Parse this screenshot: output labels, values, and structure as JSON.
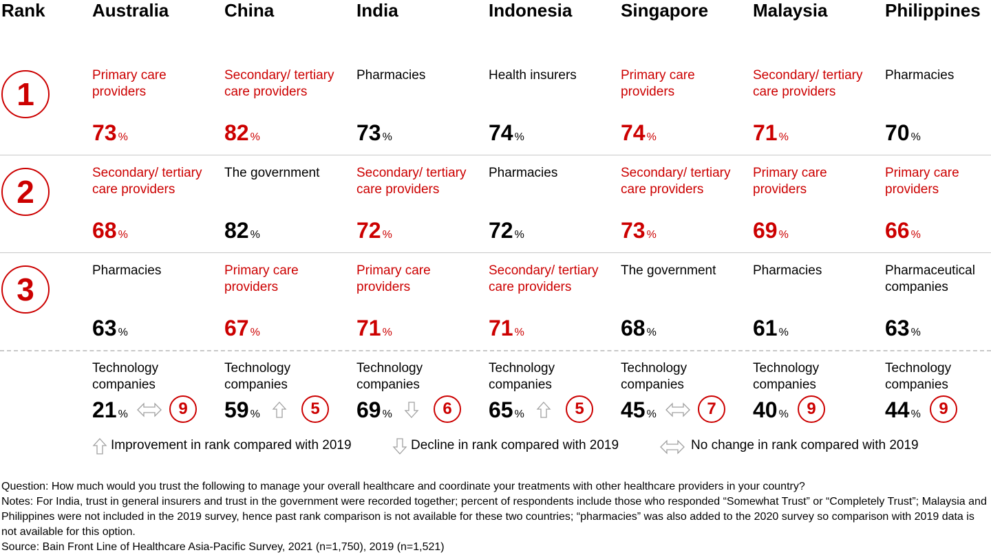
{
  "chart_data": {
    "type": "table",
    "rank_header": "Rank",
    "countries": [
      "Australia",
      "China",
      "India",
      "Indonesia",
      "Singapore",
      "Malaysia",
      "Philippines"
    ],
    "ranks": [
      {
        "rank": "1",
        "cells": [
          {
            "label": "Primary care providers",
            "value": 73,
            "highlight": true
          },
          {
            "label": "Secondary/ tertiary care providers",
            "value": 82,
            "highlight": true
          },
          {
            "label": "Pharmacies",
            "value": 73,
            "highlight": false
          },
          {
            "label": "Health insurers",
            "value": 74,
            "highlight": false
          },
          {
            "label": "Primary care providers",
            "value": 74,
            "highlight": true
          },
          {
            "label": "Secondary/ tertiary care providers",
            "value": 71,
            "highlight": true
          },
          {
            "label": "Pharmacies",
            "value": 70,
            "highlight": false
          }
        ]
      },
      {
        "rank": "2",
        "cells": [
          {
            "label": "Secondary/ tertiary care providers",
            "value": 68,
            "highlight": true
          },
          {
            "label": "The government",
            "value": 82,
            "highlight": false
          },
          {
            "label": "Secondary/ tertiary care providers",
            "value": 72,
            "highlight": true
          },
          {
            "label": "Pharmacies",
            "value": 72,
            "highlight": false
          },
          {
            "label": "Secondary/ tertiary care providers",
            "value": 73,
            "highlight": true
          },
          {
            "label": "Primary care providers",
            "value": 69,
            "highlight": true
          },
          {
            "label": "Primary care providers",
            "value": 66,
            "highlight": true
          }
        ]
      },
      {
        "rank": "3",
        "cells": [
          {
            "label": "Pharmacies",
            "value": 63,
            "highlight": false
          },
          {
            "label": "Primary care providers",
            "value": 67,
            "highlight": true
          },
          {
            "label": "Primary care providers",
            "value": 71,
            "highlight": true
          },
          {
            "label": "Secondary/ tertiary care providers",
            "value": 71,
            "highlight": true
          },
          {
            "label": "The government",
            "value": 68,
            "highlight": false
          },
          {
            "label": "Pharmacies",
            "value": 61,
            "highlight": false
          },
          {
            "label": "Pharmaceutical companies",
            "value": 63,
            "highlight": false
          }
        ]
      }
    ],
    "technology_row": {
      "label": "Technology companies",
      "cells": [
        {
          "value": 21,
          "trend": "nochange",
          "rank": "9"
        },
        {
          "value": 59,
          "trend": "up",
          "rank": "5"
        },
        {
          "value": 69,
          "trend": "down",
          "rank": "6"
        },
        {
          "value": 65,
          "trend": "up",
          "rank": "5"
        },
        {
          "value": 45,
          "trend": "nochange",
          "rank": "7"
        },
        {
          "value": 40,
          "trend": "none",
          "rank": "9"
        },
        {
          "value": 44,
          "trend": "none",
          "rank": "9"
        }
      ]
    },
    "percent_symbol": "%",
    "legend": [
      {
        "icon": "up",
        "text": "Improvement in rank compared with 2019"
      },
      {
        "icon": "down",
        "text": "Decline in rank compared with 2019"
      },
      {
        "icon": "nochange",
        "text": "No change in rank compared with 2019"
      }
    ],
    "highlight_color": "#cc0000",
    "footnotes": {
      "question": "Question: How much would you trust the following to manage your overall healthcare and coordinate your treatments with other healthcare providers in your country?",
      "notes": "Notes: For India, trust in general insurers and trust in the government were recorded together; percent of respondents include those who responded “Somewhat Trust” or “Completely Trust”; Malaysia and Philippines were not included in the 2019 survey, hence past rank comparison is not available for these two countries; “pharmacies” was also added to the 2020 survey so comparison with 2019 data is not available for this option.",
      "source": "Source: Bain Front Line of Healthcare Asia-Pacific Survey, 2021 (n=1,750), 2019 (n=1,521)"
    }
  }
}
